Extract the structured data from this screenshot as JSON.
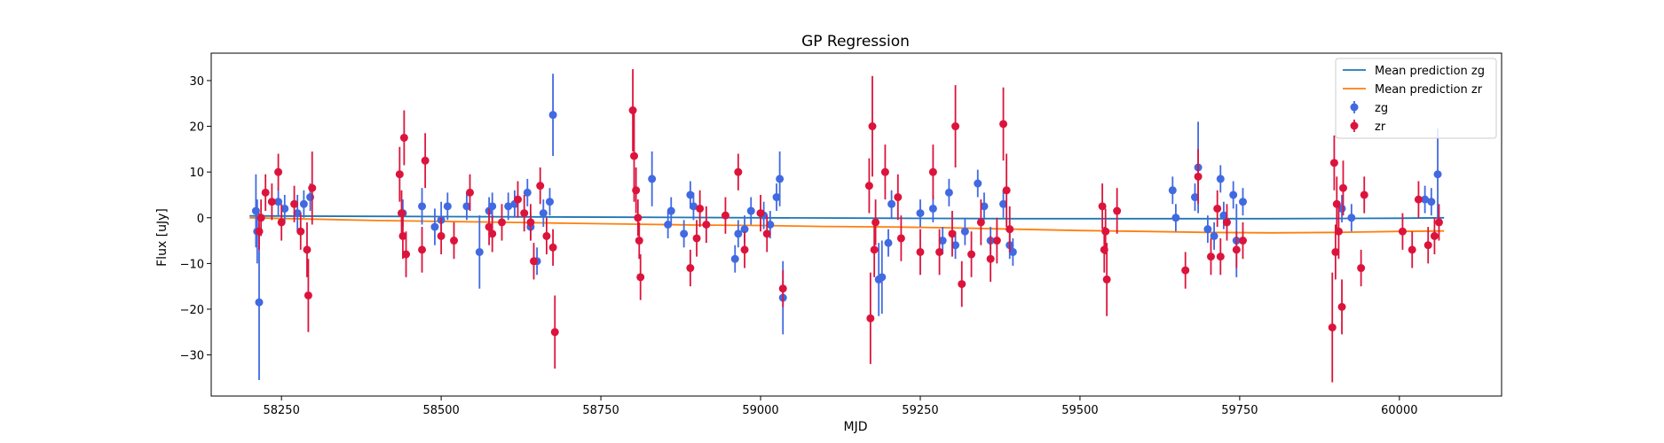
{
  "chart_data": {
    "type": "scatter",
    "title": "GP Regression",
    "xlabel": "MJD",
    "ylabel": "Flux [uJy]",
    "xlim": [
      58140,
      60160
    ],
    "ylim": [
      -39,
      36
    ],
    "x_ticks": [
      58250,
      58500,
      58750,
      59000,
      59250,
      59500,
      59750,
      60000
    ],
    "y_ticks": [
      -30,
      -20,
      -10,
      0,
      10,
      20,
      30
    ],
    "grid": false,
    "legend_position": "top-right",
    "lines": [
      {
        "name": "Mean prediction zg",
        "color": "#1f77b4",
        "x": [
          58200,
          58400,
          58600,
          58800,
          59000,
          59200,
          59400,
          59600,
          59800,
          60000,
          60070
        ],
        "y": [
          0.4,
          0.3,
          0.2,
          0.1,
          0.0,
          -0.1,
          -0.2,
          -0.2,
          -0.2,
          -0.1,
          0.0
        ]
      },
      {
        "name": "Mean prediction zr",
        "color": "#ff7f0e",
        "x": [
          58200,
          58300,
          58400,
          58500,
          58600,
          58700,
          58800,
          58900,
          59000,
          59100,
          59200,
          59300,
          59400,
          59500,
          59600,
          59700,
          59800,
          59900,
          60000,
          60070
        ],
        "y": [
          0.0,
          -0.3,
          -0.6,
          -0.8,
          -1.0,
          -1.2,
          -1.4,
          -1.6,
          -1.7,
          -1.9,
          -2.0,
          -2.2,
          -2.5,
          -2.8,
          -3.0,
          -3.2,
          -3.3,
          -3.2,
          -3.0,
          -2.9
        ]
      }
    ],
    "series": [
      {
        "name": "zg",
        "color": "#4169e1",
        "points": [
          {
            "x": 58210,
            "y": 1.5,
            "err": 8
          },
          {
            "x": 58212,
            "y": -3,
            "err": 7
          },
          {
            "x": 58215,
            "y": -18.5,
            "err": 17
          },
          {
            "x": 58245,
            "y": 3.5,
            "err": 3
          },
          {
            "x": 58255,
            "y": 2,
            "err": 3
          },
          {
            "x": 58275,
            "y": 1,
            "err": 4
          },
          {
            "x": 58285,
            "y": 3,
            "err": 3
          },
          {
            "x": 58295,
            "y": 4.5,
            "err": 3
          },
          {
            "x": 58440,
            "y": 1,
            "err": 3
          },
          {
            "x": 58470,
            "y": 2.5,
            "err": 4
          },
          {
            "x": 58490,
            "y": -2,
            "err": 4
          },
          {
            "x": 58500,
            "y": -0.5,
            "err": 4
          },
          {
            "x": 58510,
            "y": 2.5,
            "err": 3
          },
          {
            "x": 58540,
            "y": 2.5,
            "err": 3
          },
          {
            "x": 58560,
            "y": -7.5,
            "err": 8
          },
          {
            "x": 58575,
            "y": 1.5,
            "err": 3
          },
          {
            "x": 58580,
            "y": 2.5,
            "err": 3
          },
          {
            "x": 58605,
            "y": 2.5,
            "err": 3
          },
          {
            "x": 58615,
            "y": 3,
            "err": 3
          },
          {
            "x": 58635,
            "y": 5.5,
            "err": 3
          },
          {
            "x": 58640,
            "y": -2,
            "err": 3
          },
          {
            "x": 58650,
            "y": -9.5,
            "err": 3
          },
          {
            "x": 58660,
            "y": 1,
            "err": 3
          },
          {
            "x": 58670,
            "y": 3.5,
            "err": 3
          },
          {
            "x": 58675,
            "y": 22.5,
            "err": 9
          },
          {
            "x": 58830,
            "y": 8.5,
            "err": 6
          },
          {
            "x": 58855,
            "y": -1.5,
            "err": 3
          },
          {
            "x": 58860,
            "y": 1.5,
            "err": 3
          },
          {
            "x": 58880,
            "y": -3.5,
            "err": 3
          },
          {
            "x": 58890,
            "y": 5,
            "err": 3
          },
          {
            "x": 58895,
            "y": 2.5,
            "err": 3
          },
          {
            "x": 58960,
            "y": -9,
            "err": 3
          },
          {
            "x": 58965,
            "y": -3.5,
            "err": 3
          },
          {
            "x": 58975,
            "y": -2.5,
            "err": 3
          },
          {
            "x": 58985,
            "y": 1.5,
            "err": 3
          },
          {
            "x": 59005,
            "y": 0.5,
            "err": 3
          },
          {
            "x": 59015,
            "y": -1.5,
            "err": 3
          },
          {
            "x": 59025,
            "y": 4.5,
            "err": 3
          },
          {
            "x": 59030,
            "y": 8.5,
            "err": 6
          },
          {
            "x": 59035,
            "y": -17.5,
            "err": 8
          },
          {
            "x": 59185,
            "y": -13.5,
            "err": 8
          },
          {
            "x": 59190,
            "y": -13,
            "err": 8
          },
          {
            "x": 59200,
            "y": -5.5,
            "err": 3
          },
          {
            "x": 59205,
            "y": 3,
            "err": 3
          },
          {
            "x": 59250,
            "y": 1,
            "err": 3
          },
          {
            "x": 59270,
            "y": 2,
            "err": 3
          },
          {
            "x": 59285,
            "y": -5,
            "err": 3
          },
          {
            "x": 59295,
            "y": 5.5,
            "err": 3
          },
          {
            "x": 59305,
            "y": -6,
            "err": 3
          },
          {
            "x": 59320,
            "y": -3,
            "err": 3
          },
          {
            "x": 59340,
            "y": 7.5,
            "err": 3
          },
          {
            "x": 59350,
            "y": 2.5,
            "err": 3
          },
          {
            "x": 59360,
            "y": -5,
            "err": 3
          },
          {
            "x": 59380,
            "y": 3,
            "err": 3
          },
          {
            "x": 59390,
            "y": -6,
            "err": 3
          },
          {
            "x": 59395,
            "y": -7.5,
            "err": 3
          },
          {
            "x": 59645,
            "y": 6,
            "err": 3
          },
          {
            "x": 59650,
            "y": 0,
            "err": 3
          },
          {
            "x": 59680,
            "y": 4.5,
            "err": 3
          },
          {
            "x": 59685,
            "y": 11,
            "err": 10
          },
          {
            "x": 59700,
            "y": -2.5,
            "err": 3
          },
          {
            "x": 59710,
            "y": -4,
            "err": 3
          },
          {
            "x": 59720,
            "y": 8.5,
            "err": 3
          },
          {
            "x": 59725,
            "y": 0.5,
            "err": 3
          },
          {
            "x": 59740,
            "y": 5,
            "err": 3
          },
          {
            "x": 59745,
            "y": -5,
            "err": 8
          },
          {
            "x": 59755,
            "y": 3.5,
            "err": 3
          },
          {
            "x": 59910,
            "y": 2,
            "err": 3
          },
          {
            "x": 59925,
            "y": 0,
            "err": 3
          },
          {
            "x": 60040,
            "y": 4,
            "err": 3
          },
          {
            "x": 60050,
            "y": 3.5,
            "err": 3
          },
          {
            "x": 60060,
            "y": 9.5,
            "err": 10
          }
        ]
      },
      {
        "name": "zr",
        "color": "#dc143c",
        "points": [
          {
            "x": 58215,
            "y": -3,
            "err": 4
          },
          {
            "x": 58218,
            "y": 0,
            "err": 4
          },
          {
            "x": 58225,
            "y": 5.5,
            "err": 4
          },
          {
            "x": 58235,
            "y": 3.5,
            "err": 4
          },
          {
            "x": 58245,
            "y": 10,
            "err": 4
          },
          {
            "x": 58250,
            "y": -1,
            "err": 4
          },
          {
            "x": 58270,
            "y": 3,
            "err": 4
          },
          {
            "x": 58280,
            "y": -3,
            "err": 4
          },
          {
            "x": 58290,
            "y": -7,
            "err": 6
          },
          {
            "x": 58292,
            "y": -17,
            "err": 8
          },
          {
            "x": 58298,
            "y": 6.5,
            "err": 8
          },
          {
            "x": 58435,
            "y": 9.5,
            "err": 6
          },
          {
            "x": 58438,
            "y": 1,
            "err": 5
          },
          {
            "x": 58440,
            "y": -4,
            "err": 5
          },
          {
            "x": 58442,
            "y": 17.5,
            "err": 6
          },
          {
            "x": 58445,
            "y": -8,
            "err": 5
          },
          {
            "x": 58470,
            "y": -7,
            "err": 5
          },
          {
            "x": 58475,
            "y": 12.5,
            "err": 6
          },
          {
            "x": 58500,
            "y": -4,
            "err": 4
          },
          {
            "x": 58520,
            "y": -5,
            "err": 4
          },
          {
            "x": 58545,
            "y": 5.5,
            "err": 4
          },
          {
            "x": 58575,
            "y": -2,
            "err": 4
          },
          {
            "x": 58580,
            "y": -3.5,
            "err": 4
          },
          {
            "x": 58595,
            "y": -1,
            "err": 4
          },
          {
            "x": 58620,
            "y": 4,
            "err": 4
          },
          {
            "x": 58630,
            "y": 1,
            "err": 4
          },
          {
            "x": 58640,
            "y": -1,
            "err": 4
          },
          {
            "x": 58645,
            "y": -9.5,
            "err": 4
          },
          {
            "x": 58655,
            "y": 7,
            "err": 4
          },
          {
            "x": 58665,
            "y": -4,
            "err": 4
          },
          {
            "x": 58675,
            "y": -6.5,
            "err": 4
          },
          {
            "x": 58678,
            "y": -25,
            "err": 8
          },
          {
            "x": 58800,
            "y": 23.5,
            "err": 9
          },
          {
            "x": 58802,
            "y": 13.5,
            "err": 10
          },
          {
            "x": 58805,
            "y": 6,
            "err": 5
          },
          {
            "x": 58808,
            "y": 0,
            "err": 4
          },
          {
            "x": 58810,
            "y": -5,
            "err": 4
          },
          {
            "x": 58812,
            "y": -13,
            "err": 5
          },
          {
            "x": 58890,
            "y": -11,
            "err": 4
          },
          {
            "x": 58900,
            "y": -4.5,
            "err": 4
          },
          {
            "x": 58905,
            "y": 2,
            "err": 4
          },
          {
            "x": 58915,
            "y": -1.5,
            "err": 4
          },
          {
            "x": 58945,
            "y": 0.5,
            "err": 4
          },
          {
            "x": 58965,
            "y": 10,
            "err": 4
          },
          {
            "x": 58975,
            "y": -7,
            "err": 4
          },
          {
            "x": 59000,
            "y": 1,
            "err": 4
          },
          {
            "x": 59010,
            "y": -3.5,
            "err": 4
          },
          {
            "x": 59035,
            "y": -15.5,
            "err": 4
          },
          {
            "x": 59170,
            "y": 7,
            "err": 6
          },
          {
            "x": 59172,
            "y": -22,
            "err": 10
          },
          {
            "x": 59175,
            "y": 20,
            "err": 11
          },
          {
            "x": 59178,
            "y": -7,
            "err": 6
          },
          {
            "x": 59180,
            "y": -1,
            "err": 5
          },
          {
            "x": 59195,
            "y": 10,
            "err": 6
          },
          {
            "x": 59215,
            "y": 4.5,
            "err": 5
          },
          {
            "x": 59220,
            "y": -4.5,
            "err": 5
          },
          {
            "x": 59250,
            "y": -7.5,
            "err": 5
          },
          {
            "x": 59270,
            "y": 10,
            "err": 6
          },
          {
            "x": 59280,
            "y": -7.5,
            "err": 5
          },
          {
            "x": 59300,
            "y": -3.5,
            "err": 5
          },
          {
            "x": 59305,
            "y": 20,
            "err": 9
          },
          {
            "x": 59315,
            "y": -14.5,
            "err": 5
          },
          {
            "x": 59330,
            "y": -8,
            "err": 5
          },
          {
            "x": 59345,
            "y": -1,
            "err": 5
          },
          {
            "x": 59360,
            "y": -9,
            "err": 5
          },
          {
            "x": 59370,
            "y": -5,
            "err": 5
          },
          {
            "x": 59380,
            "y": 20.5,
            "err": 8
          },
          {
            "x": 59385,
            "y": 6,
            "err": 8
          },
          {
            "x": 59390,
            "y": -2.5,
            "err": 5
          },
          {
            "x": 59535,
            "y": 2.5,
            "err": 5
          },
          {
            "x": 59538,
            "y": -7,
            "err": 5
          },
          {
            "x": 59540,
            "y": -3,
            "err": 5
          },
          {
            "x": 59542,
            "y": -13.5,
            "err": 8
          },
          {
            "x": 59558,
            "y": 1.5,
            "err": 5
          },
          {
            "x": 59665,
            "y": -11.5,
            "err": 4
          },
          {
            "x": 59685,
            "y": 9,
            "err": 6
          },
          {
            "x": 59705,
            "y": -8.5,
            "err": 4
          },
          {
            "x": 59715,
            "y": 2,
            "err": 4
          },
          {
            "x": 59720,
            "y": -8.5,
            "err": 4
          },
          {
            "x": 59730,
            "y": -1,
            "err": 4
          },
          {
            "x": 59745,
            "y": -7,
            "err": 4
          },
          {
            "x": 59755,
            "y": -5,
            "err": 4
          },
          {
            "x": 59895,
            "y": -24,
            "err": 12
          },
          {
            "x": 59898,
            "y": 12,
            "err": 6
          },
          {
            "x": 59900,
            "y": -7.5,
            "err": 6
          },
          {
            "x": 59902,
            "y": 3,
            "err": 6
          },
          {
            "x": 59905,
            "y": -3,
            "err": 6
          },
          {
            "x": 59910,
            "y": -19.5,
            "err": 6
          },
          {
            "x": 59912,
            "y": 6.5,
            "err": 6
          },
          {
            "x": 59940,
            "y": -11,
            "err": 4
          },
          {
            "x": 59945,
            "y": 5,
            "err": 4
          },
          {
            "x": 60005,
            "y": -3,
            "err": 4
          },
          {
            "x": 60020,
            "y": -7,
            "err": 4
          },
          {
            "x": 60030,
            "y": 4,
            "err": 4
          },
          {
            "x": 60045,
            "y": -6,
            "err": 4
          },
          {
            "x": 60055,
            "y": -4,
            "err": 4
          },
          {
            "x": 60062,
            "y": -1,
            "err": 4
          }
        ]
      }
    ]
  }
}
